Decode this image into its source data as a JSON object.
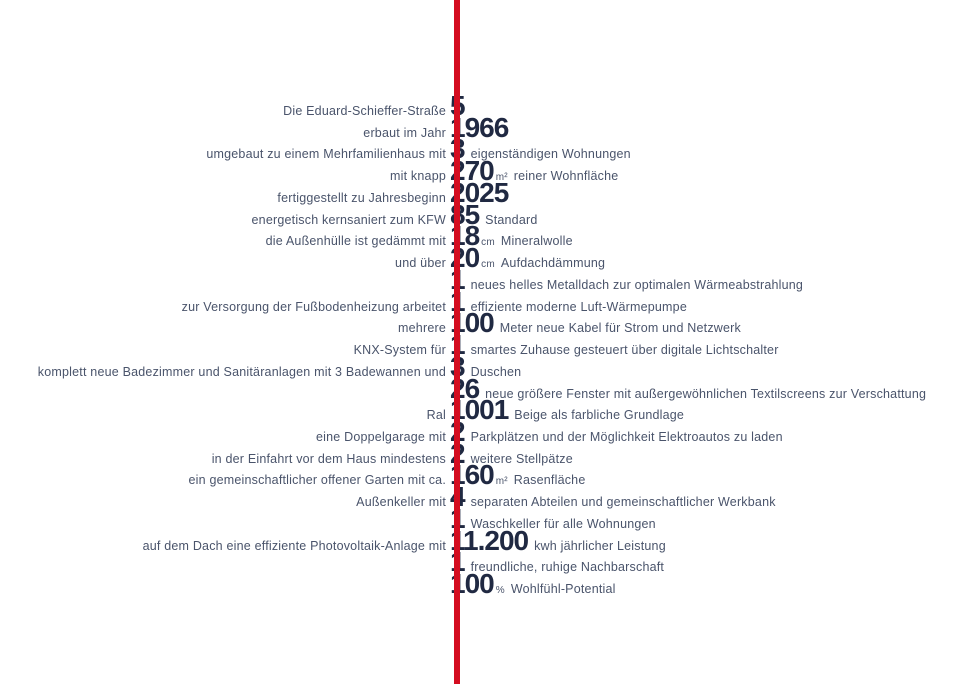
{
  "colors": {
    "line": "#d40d20",
    "number": "#202942",
    "text": "#4a546b",
    "background": "#ffffff"
  },
  "rows": [
    {
      "left": "Die Eduard-Schieffer-Straße",
      "number": "5",
      "unit": "",
      "right": ""
    },
    {
      "left": "erbaut im Jahr",
      "number": "1966",
      "unit": "",
      "right": ""
    },
    {
      "left": "umgebaut zu einem Mehrfamilienhaus mit",
      "number": "3",
      "unit": "",
      "right": "eigenständigen Wohnungen"
    },
    {
      "left": "mit knapp",
      "number": "270",
      "unit": "m²",
      "right": "reiner Wohnfläche"
    },
    {
      "left": "fertiggestellt zu Jahresbeginn",
      "number": "2025",
      "unit": "",
      "right": ""
    },
    {
      "left": "energetisch kernsaniert zum KFW",
      "number": "85",
      "unit": "",
      "right": "Standard"
    },
    {
      "left": "die Außenhülle ist gedämmt mit",
      "number": "18",
      "unit": "cm",
      "right": "Mineralwolle"
    },
    {
      "left": "und über",
      "number": "20",
      "unit": "cm",
      "right": "Aufdachdämmung"
    },
    {
      "left": "",
      "number": "1",
      "unit": "",
      "right": "neues helles Metalldach zur optimalen Wärmeabstrahlung"
    },
    {
      "left": "zur Versorgung der Fußbodenheizung arbeitet",
      "number": "1",
      "unit": "",
      "right": "effiziente moderne Luft-Wärmepumpe"
    },
    {
      "left": "mehrere",
      "number": "100",
      "unit": "",
      "right": "Meter neue Kabel für Strom und Netzwerk"
    },
    {
      "left": "KNX-System für",
      "number": "1",
      "unit": "",
      "right": "smartes Zuhause gesteuert über digitale Lichtschalter"
    },
    {
      "left": "komplett neue Badezimmer und Sanitäranlagen mit 3 Badewannen und",
      "number": "3",
      "unit": "",
      "right": "Duschen"
    },
    {
      "left": "",
      "number": "26",
      "unit": "",
      "right": "neue größere Fenster mit außergewöhnlichen Textilscreens zur Verschattung"
    },
    {
      "left": "Ral",
      "number": "1001",
      "unit": "",
      "right": "Beige als farbliche Grundlage"
    },
    {
      "left": "eine Doppelgarage mit",
      "number": "2",
      "unit": "",
      "right": "Parkplätzen und der Möglichkeit Elektroautos zu laden"
    },
    {
      "left": "in der Einfahrt vor dem Haus mindestens",
      "number": "2",
      "unit": "",
      "right": "weitere Stellpätze"
    },
    {
      "left": "ein gemeinschaftlicher offener Garten mit ca.",
      "number": "160",
      "unit": "m²",
      "right": "Rasenfläche"
    },
    {
      "left": "Außenkeller mit",
      "number": "4",
      "unit": "",
      "right": "separaten Abteilen und gemeinschaftlicher Werkbank"
    },
    {
      "left": "",
      "number": "1",
      "unit": "",
      "right": "Waschkeller für alle Wohnungen"
    },
    {
      "left": "auf dem Dach eine effiziente Photovoltaik-Anlage mit",
      "number": "11.200",
      "unit": "",
      "right": "kwh jährlicher Leistung"
    },
    {
      "left": "",
      "number": "1",
      "unit": "",
      "right": "freundliche, ruhige Nachbarschaft"
    },
    {
      "left": "",
      "number": "100",
      "unit": "%",
      "right": "Wohlfühl-Potential"
    }
  ]
}
